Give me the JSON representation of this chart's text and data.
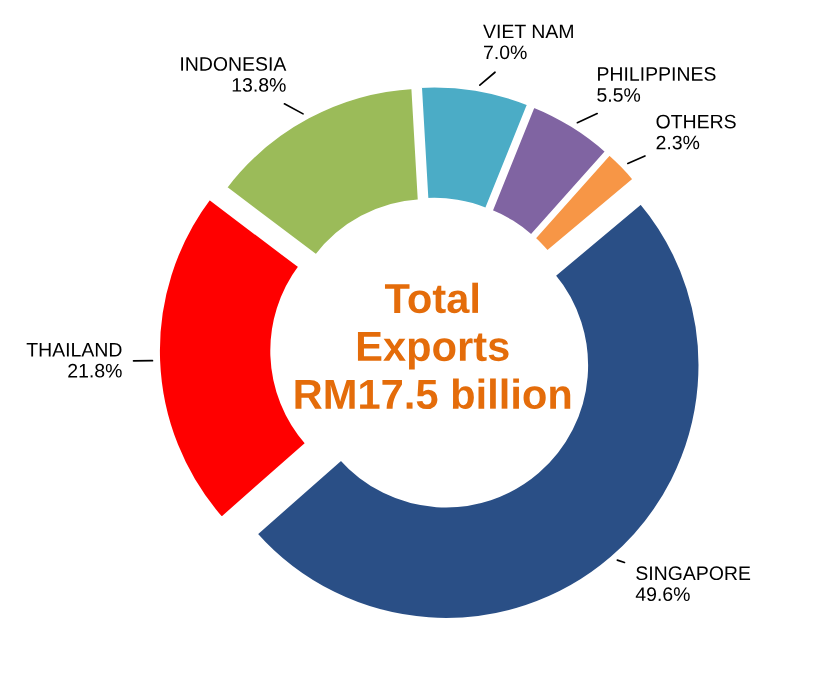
{
  "chart_data": {
    "type": "donut",
    "title": "Total\nExports\nRM17.5 billion",
    "categories": [
      "SINGAPORE",
      "THAILAND",
      "INDONESIA",
      "VIET NAM",
      "PHILIPPINES",
      "OTHERS"
    ],
    "values": [
      49.6,
      21.8,
      13.8,
      7.0,
      5.5,
      2.3
    ],
    "value_labels": [
      "49.6%",
      "21.8%",
      "13.8%",
      "7.0%",
      "5.5%",
      "2.3%"
    ],
    "colors": [
      "#2a4f86",
      "#ff0000",
      "#9bbb59",
      "#4bacc6",
      "#8064a2",
      "#f79646"
    ]
  }
}
